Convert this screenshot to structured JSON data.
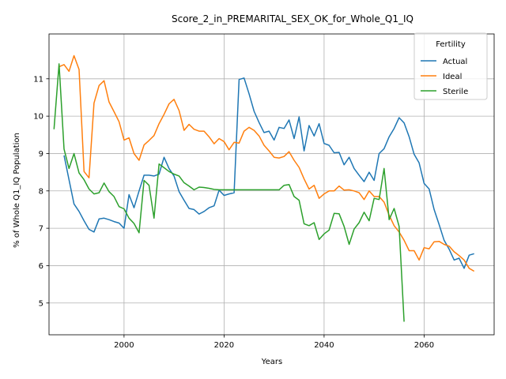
{
  "chart_data": {
    "type": "line",
    "title": "Score_2_in_PREMARITAL_SEX_OK_for_Whole_Q1_IQ",
    "xlabel": "Years",
    "ylabel": "% of Whole Q1_IQ Population",
    "xlim": [
      1985,
      2074
    ],
    "ylim": [
      4.15,
      12.2
    ],
    "xticks": [
      2000,
      2020,
      2040,
      2060
    ],
    "yticks": [
      5,
      6,
      7,
      8,
      9,
      10,
      11
    ],
    "grid": true,
    "legend": {
      "title": "Fertility",
      "position": "top-right"
    },
    "series": [
      {
        "name": "Actual",
        "color": "#1f77b4",
        "x": [
          1988,
          1989,
          1990,
          1991,
          1992,
          1993,
          1994,
          1995,
          1996,
          1997,
          1998,
          1999,
          2000,
          2001,
          2002,
          2003,
          2004,
          2005,
          2006,
          2007,
          2008,
          2009,
          2010,
          2011,
          2012,
          2013,
          2014,
          2015,
          2016,
          2017,
          2018,
          2019,
          2020,
          2021,
          2022,
          2023,
          2024,
          2025,
          2026,
          2027,
          2028,
          2029,
          2030,
          2031,
          2032,
          2033,
          2034,
          2035,
          2036,
          2037,
          2038,
          2039,
          2040,
          2041,
          2042,
          2043,
          2044,
          2045,
          2046,
          2047,
          2048,
          2049,
          2050,
          2051,
          2052,
          2053,
          2054,
          2055,
          2056,
          2057,
          2058,
          2059,
          2060,
          2061,
          2062,
          2063,
          2064,
          2065,
          2066,
          2067,
          2068,
          2069,
          2070
        ],
        "y": [
          8.95,
          8.3,
          7.65,
          7.45,
          7.2,
          6.97,
          6.9,
          7.25,
          7.27,
          7.23,
          7.18,
          7.14,
          7.0,
          7.9,
          7.55,
          8.0,
          8.42,
          8.42,
          8.4,
          8.45,
          8.9,
          8.6,
          8.4,
          7.98,
          7.75,
          7.53,
          7.5,
          7.38,
          7.45,
          7.55,
          7.6,
          8.02,
          7.88,
          7.92,
          7.95,
          10.98,
          11.02,
          10.6,
          10.13,
          9.83,
          9.56,
          9.6,
          9.36,
          9.7,
          9.67,
          9.9,
          9.4,
          9.98,
          9.07,
          9.75,
          9.47,
          9.8,
          9.27,
          9.22,
          9.02,
          9.03,
          8.7,
          8.9,
          8.6,
          8.42,
          8.25,
          8.5,
          8.28,
          9.0,
          9.13,
          9.45,
          9.67,
          9.96,
          9.82,
          9.45,
          8.98,
          8.75,
          8.2,
          8.05,
          7.5,
          7.1,
          6.68,
          6.44,
          6.15,
          6.2,
          5.93,
          6.28,
          6.32
        ]
      },
      {
        "name": "Ideal",
        "color": "#ff7f0e",
        "x": [
          1987,
          1988,
          1989,
          1990,
          1991,
          1992,
          1993,
          1994,
          1995,
          1996,
          1997,
          1998,
          1999,
          2000,
          2001,
          2002,
          2003,
          2004,
          2005,
          2006,
          2007,
          2008,
          2009,
          2010,
          2011,
          2012,
          2013,
          2014,
          2015,
          2016,
          2017,
          2018,
          2019,
          2020,
          2021,
          2022,
          2023,
          2024,
          2025,
          2026,
          2027,
          2028,
          2029,
          2030,
          2031,
          2032,
          2033,
          2034,
          2035,
          2036,
          2037,
          2038,
          2039,
          2040,
          2041,
          2042,
          2043,
          2044,
          2045,
          2046,
          2047,
          2048,
          2049,
          2050,
          2051,
          2052,
          2053,
          2054,
          2055,
          2056,
          2057,
          2058,
          2059,
          2060,
          2061,
          2062,
          2063,
          2064,
          2065,
          2066,
          2067,
          2068,
          2069,
          2070
        ],
        "y": [
          11.32,
          11.38,
          11.2,
          11.62,
          11.25,
          8.52,
          8.35,
          10.35,
          10.82,
          10.95,
          10.38,
          10.12,
          9.85,
          9.36,
          9.42,
          9.0,
          8.82,
          9.23,
          9.35,
          9.48,
          9.8,
          10.05,
          10.33,
          10.45,
          10.15,
          9.62,
          9.78,
          9.65,
          9.6,
          9.6,
          9.45,
          9.26,
          9.4,
          9.32,
          9.1,
          9.3,
          9.28,
          9.6,
          9.7,
          9.62,
          9.47,
          9.22,
          9.07,
          8.9,
          8.88,
          8.92,
          9.05,
          8.82,
          8.63,
          8.32,
          8.05,
          8.15,
          7.8,
          7.92,
          8.0,
          8.0,
          8.13,
          8.02,
          8.03,
          8.0,
          7.95,
          7.77,
          8.0,
          7.85,
          7.85,
          7.7,
          7.35,
          7.07,
          6.9,
          6.68,
          6.4,
          6.4,
          6.15,
          6.48,
          6.45,
          6.64,
          6.65,
          6.57,
          6.52,
          6.37,
          6.27,
          6.15,
          5.93,
          5.85
        ]
      },
      {
        "name": "Sterile",
        "color": "#2ca02c",
        "x": [
          1986,
          1987,
          1988,
          1989,
          1990,
          1991,
          1992,
          1993,
          1994,
          1995,
          1996,
          1997,
          1998,
          1999,
          2000,
          2001,
          2002,
          2003,
          2004,
          2005,
          2006,
          2007,
          2008,
          2009,
          2010,
          2011,
          2012,
          2013,
          2014,
          2015,
          2016,
          2017,
          2018,
          2019,
          2020,
          2021,
          2022,
          2023,
          2024,
          2025,
          2026,
          2027,
          2028,
          2029,
          2030,
          2031,
          2032,
          2033,
          2034,
          2035,
          2036,
          2037,
          2038,
          2039,
          2040,
          2041,
          2042,
          2043,
          2044,
          2045,
          2046,
          2047,
          2048,
          2049,
          2050,
          2051,
          2052,
          2053,
          2054,
          2055,
          2056
        ],
        "y": [
          9.65,
          11.4,
          9.12,
          8.6,
          9.0,
          8.48,
          8.3,
          8.05,
          7.92,
          7.95,
          8.21,
          7.98,
          7.85,
          7.58,
          7.52,
          7.27,
          7.13,
          6.88,
          8.28,
          8.15,
          7.27,
          8.72,
          8.62,
          8.52,
          8.45,
          8.4,
          8.22,
          8.13,
          8.03,
          8.1,
          8.09,
          8.07,
          8.04,
          8.03,
          8.03,
          8.03,
          8.03,
          8.03,
          8.03,
          8.03,
          8.03,
          8.03,
          8.03,
          8.03,
          8.03,
          8.03,
          8.15,
          8.17,
          7.85,
          7.75,
          7.12,
          7.07,
          7.15,
          6.7,
          6.85,
          6.95,
          7.4,
          7.39,
          7.05,
          6.57,
          6.98,
          7.15,
          7.43,
          7.2,
          7.8,
          7.77,
          8.6,
          7.23,
          7.53,
          7.05,
          4.5
        ]
      }
    ]
  }
}
